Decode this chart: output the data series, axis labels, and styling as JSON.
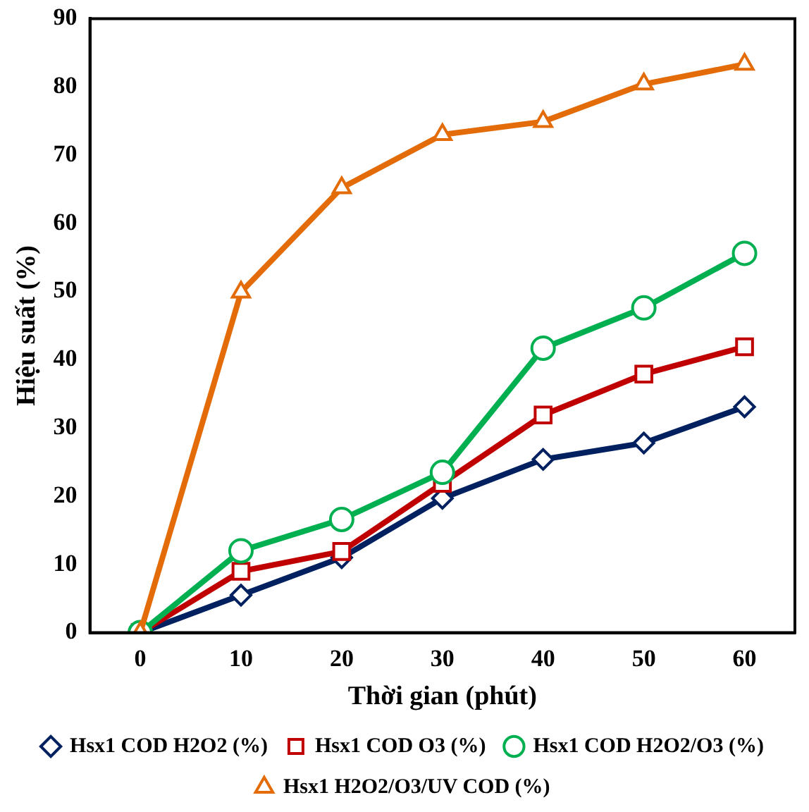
{
  "chart_data": {
    "type": "line",
    "xlabel": "Thời gian (phút)",
    "ylabel": "Hiệu suất (%)",
    "categories": [
      "0",
      "10",
      "20",
      "30",
      "40",
      "50",
      "60"
    ],
    "ylim": [
      0,
      90
    ],
    "yticks": [
      0,
      10,
      20,
      30,
      40,
      50,
      60,
      70,
      80,
      90
    ],
    "grid": false,
    "legend": "bottom",
    "line_style": "solid",
    "series": [
      {
        "name": "Hsx1 COD H2O2 (%)",
        "color": "#002060",
        "marker": "diamond",
        "values": [
          0,
          5.5,
          11,
          19.7,
          25.4,
          27.8,
          33.1
        ]
      },
      {
        "name": "Hsx1 COD O3 (%)",
        "color": "#c00000",
        "marker": "square",
        "values": [
          0,
          9,
          11.9,
          21.9,
          31.9,
          37.9,
          41.9
        ]
      },
      {
        "name": "Hsx1 COD H2O2/O3 (%)",
        "color": "#00b050",
        "marker": "circle",
        "values": [
          0,
          12,
          16.6,
          23.5,
          41.7,
          47.6,
          55.6
        ]
      },
      {
        "name": "Hsx1 H2O2/O3/UV COD (%)",
        "color": "#e36c09",
        "marker": "triangle",
        "values": [
          0,
          49.9,
          65.2,
          73,
          74.9,
          80.4,
          83.3
        ]
      }
    ]
  }
}
